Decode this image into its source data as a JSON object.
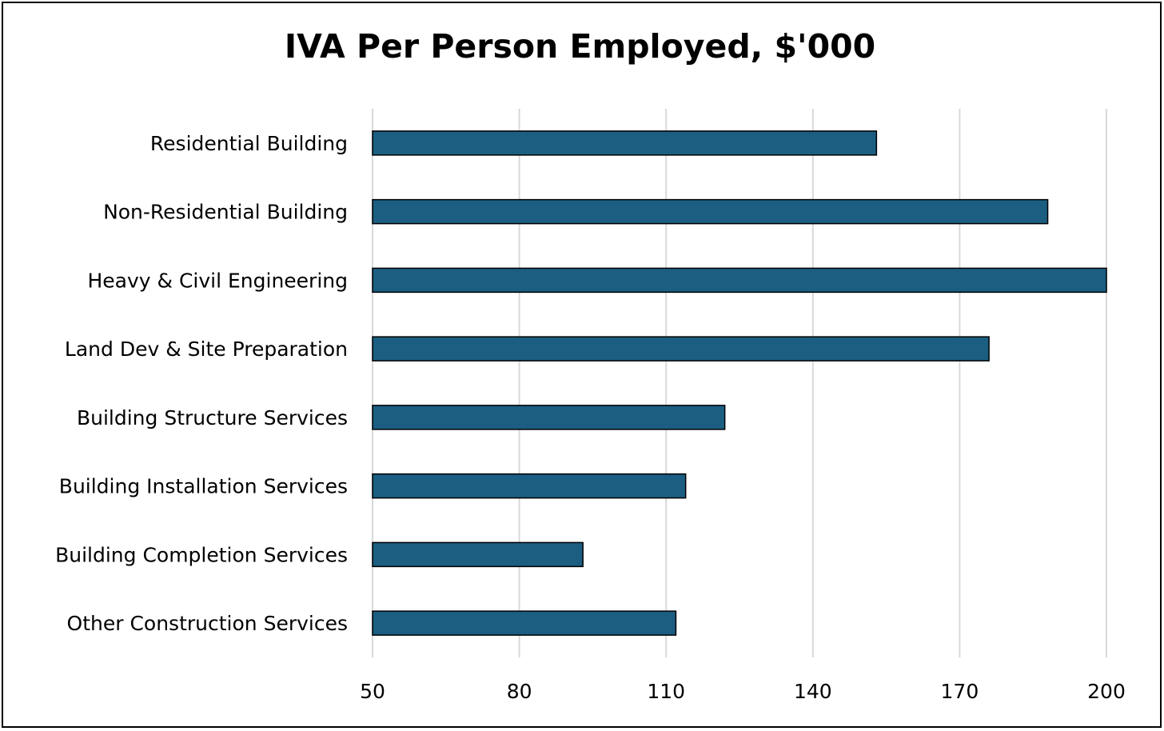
{
  "chart_data": {
    "type": "bar",
    "orientation": "horizontal",
    "title": "IVA Per Person Employed, $'000",
    "xlabel": "",
    "ylabel": "",
    "categories": [
      "Residential Building",
      "Non-Residential Building",
      "Heavy & Civil Engineering",
      "Land Dev & Site Preparation",
      "Building Structure Services",
      "Building Installation Services",
      "Building Completion Services",
      "Other Construction Services"
    ],
    "values": [
      153,
      188,
      200,
      176,
      122,
      114,
      93,
      112
    ],
    "xlim": [
      50,
      200
    ],
    "ticks": [
      "50",
      "80",
      "110",
      "140",
      "170",
      "200"
    ],
    "grid": "vertical",
    "legend": "none",
    "bar_color": "#1B5E82",
    "bar_edge_color": "#000000"
  }
}
